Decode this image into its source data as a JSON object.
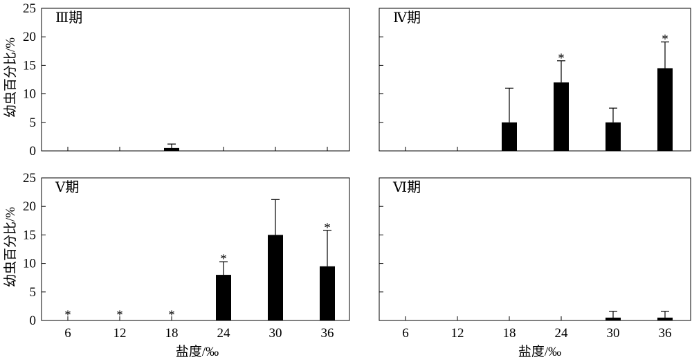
{
  "figure": {
    "ylabel": "幼虫百分比/%",
    "xlabel": "盐度/‰"
  },
  "chart_data": [
    {
      "type": "bar",
      "panel": "III期",
      "title": "Ⅲ期",
      "categories": [
        "6",
        "12",
        "18",
        "24",
        "30",
        "36"
      ],
      "values": [
        0,
        0,
        0.5,
        0,
        0,
        0
      ],
      "error": [
        0,
        0,
        0.7,
        0,
        0,
        0
      ],
      "significant": [
        false,
        false,
        false,
        false,
        false,
        false
      ],
      "ylim": [
        0,
        25
      ],
      "yticks": [
        "0",
        "5",
        "10",
        "15",
        "20",
        "25"
      ]
    },
    {
      "type": "bar",
      "panel": "IV期",
      "title": "Ⅳ期",
      "categories": [
        "6",
        "12",
        "18",
        "24",
        "30",
        "36"
      ],
      "values": [
        0,
        0,
        5,
        12,
        5,
        14.5
      ],
      "error": [
        0,
        0,
        6,
        3.8,
        2.5,
        4.6
      ],
      "significant": [
        false,
        false,
        false,
        true,
        false,
        true
      ],
      "ylim": [
        0,
        25
      ],
      "yticks": []
    },
    {
      "type": "bar",
      "panel": "V期",
      "title": "Ⅴ期",
      "categories": [
        "6",
        "12",
        "18",
        "24",
        "30",
        "36"
      ],
      "values": [
        0,
        0,
        0,
        8,
        15,
        9.5
      ],
      "error": [
        0,
        0,
        0,
        2.3,
        6.2,
        6.3
      ],
      "significant": [
        true,
        true,
        true,
        true,
        false,
        true
      ],
      "ylim": [
        0,
        25
      ],
      "yticks": [
        "0",
        "5",
        "10",
        "15",
        "20",
        "25"
      ]
    },
    {
      "type": "bar",
      "panel": "VI期",
      "title": "Ⅵ期",
      "categories": [
        "6",
        "12",
        "18",
        "24",
        "30",
        "36"
      ],
      "values": [
        0,
        0,
        0,
        0,
        0.5,
        0.5
      ],
      "error": [
        0,
        0,
        0,
        0,
        1.1,
        1.1
      ],
      "significant": [
        false,
        false,
        false,
        false,
        false,
        false
      ],
      "ylim": [
        0,
        25
      ],
      "yticks": []
    }
  ]
}
